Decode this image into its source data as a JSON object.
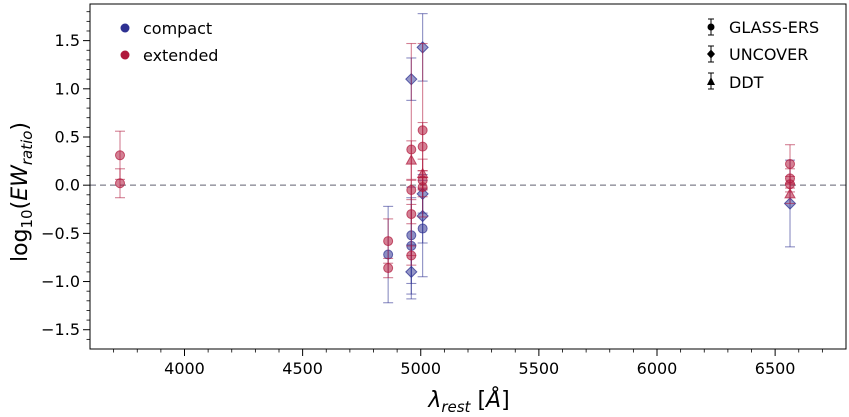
{
  "chart_data": {
    "type": "scatter",
    "title": "",
    "xlabel": "λ_rest [Å]",
    "ylabel": "log10(EW_ratio)",
    "xlim": [
      3600,
      6800
    ],
    "ylim": [
      -1.7,
      1.88
    ],
    "xticks": [
      4000,
      4500,
      5000,
      5500,
      6000,
      6500
    ],
    "xtick_labels": [
      "4000",
      "4500",
      "5000",
      "5500",
      "6000",
      "6500"
    ],
    "yticks": [
      -1.5,
      -1.0,
      -0.5,
      0.0,
      0.5,
      1.0,
      1.5
    ],
    "ytick_labels": [
      "−1.5",
      "−1.0",
      "−0.5",
      "0.0",
      "0.5",
      "1.0",
      "1.5"
    ],
    "reference_line": {
      "y": 0.0,
      "style": "dashed"
    },
    "colors": {
      "compact": "#2e3192",
      "extended": "#b0183c",
      "refline": "#9e9ea8"
    },
    "legend_color": {
      "placement": "top-left",
      "entries": [
        {
          "label": "compact",
          "color": "#2e3192"
        },
        {
          "label": "extended",
          "color": "#b0183c"
        }
      ]
    },
    "legend_survey": {
      "placement": "top-right",
      "entries": [
        {
          "label": "GLASS-ERS",
          "marker": "circle"
        },
        {
          "label": "UNCOVER",
          "marker": "diamond"
        },
        {
          "label": "DDT",
          "marker": "triangle"
        }
      ]
    },
    "series": [
      {
        "name": "compact",
        "survey": "GLASS-ERS",
        "marker": "circle",
        "points": [
          {
            "x": 4862,
            "y": -0.72,
            "err": 0.5
          },
          {
            "x": 4960,
            "y": -0.52,
            "err": 0.5
          },
          {
            "x": 5008,
            "y": -0.45,
            "err": 0.5
          },
          {
            "x": 4960,
            "y": -0.63,
            "err": 0.5
          }
        ]
      },
      {
        "name": "compact",
        "survey": "UNCOVER",
        "marker": "diamond",
        "points": [
          {
            "x": 4960,
            "y": 1.1,
            "err": 0.22
          },
          {
            "x": 5008,
            "y": 1.43,
            "err": 0.35
          },
          {
            "x": 4960,
            "y": -0.9,
            "err": 0.28
          },
          {
            "x": 5008,
            "y": -0.32,
            "err": 0.28
          },
          {
            "x": 5008,
            "y": -0.09,
            "err": 0.2
          },
          {
            "x": 6563,
            "y": -0.19,
            "err": 0.45
          }
        ]
      },
      {
        "name": "extended",
        "survey": "GLASS-ERS",
        "marker": "circle",
        "points": [
          {
            "x": 3727,
            "y": 0.31,
            "err": 0.25
          },
          {
            "x": 3727,
            "y": 0.02,
            "err": 0.15
          },
          {
            "x": 4862,
            "y": -0.58,
            "err": 0.23
          },
          {
            "x": 4862,
            "y": -0.86,
            "err": 0.1
          },
          {
            "x": 4960,
            "y": 0.37,
            "err": 1.1
          },
          {
            "x": 4960,
            "y": -0.05,
            "err": 0.1
          },
          {
            "x": 4960,
            "y": -0.3,
            "err": 0.1
          },
          {
            "x": 4960,
            "y": -0.73,
            "err": 0.1
          },
          {
            "x": 5008,
            "y": 0.57,
            "err": 0.9
          },
          {
            "x": 5008,
            "y": 0.4,
            "err": 0.25
          },
          {
            "x": 5008,
            "y": 0.05,
            "err": 0.1
          },
          {
            "x": 5008,
            "y": -0.02,
            "err": 0.1
          },
          {
            "x": 6563,
            "y": 0.22,
            "err": 0.2
          },
          {
            "x": 6563,
            "y": 0.07,
            "err": 0.1
          },
          {
            "x": 6563,
            "y": 0.01,
            "err": 0.08
          }
        ]
      },
      {
        "name": "extended",
        "survey": "DDT",
        "marker": "triangle",
        "points": [
          {
            "x": 4960,
            "y": 0.26,
            "err": 0.2
          },
          {
            "x": 5008,
            "y": 0.12,
            "err": 0.15
          },
          {
            "x": 6563,
            "y": -0.09,
            "err": 0.1
          }
        ]
      }
    ]
  }
}
